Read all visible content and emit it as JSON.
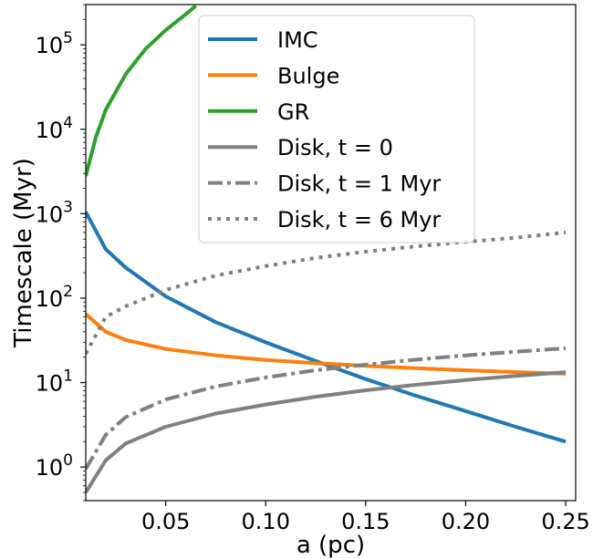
{
  "chart_data": {
    "type": "line",
    "xlabel": "a (pc)",
    "ylabel": "Timescale (Myr)",
    "xlim": [
      0.01,
      0.255
    ],
    "ylim": [
      0.4,
      300000
    ],
    "yscale": "log",
    "grid": false,
    "legend_position": "top-center",
    "x_ticks": [
      {
        "value": 0.05,
        "label": "0.05"
      },
      {
        "value": 0.1,
        "label": "0.10"
      },
      {
        "value": 0.15,
        "label": "0.15"
      },
      {
        "value": 0.2,
        "label": "0.20"
      },
      {
        "value": 0.25,
        "label": "0.25"
      }
    ],
    "y_ticks": [
      {
        "value": 1,
        "base": "10",
        "exp": "0"
      },
      {
        "value": 10,
        "base": "10",
        "exp": "1"
      },
      {
        "value": 100,
        "base": "10",
        "exp": "2"
      },
      {
        "value": 1000,
        "base": "10",
        "exp": "3"
      },
      {
        "value": 10000,
        "base": "10",
        "exp": "4"
      },
      {
        "value": 100000,
        "base": "10",
        "exp": "5"
      }
    ],
    "series": [
      {
        "name": "IMC",
        "color": "#1f77b4",
        "style": "solid",
        "x": [
          0.01,
          0.02,
          0.03,
          0.05,
          0.075,
          0.1,
          0.125,
          0.15,
          0.175,
          0.2,
          0.225,
          0.25
        ],
        "y": [
          1050,
          380,
          230,
          105,
          52,
          30,
          18,
          11,
          7,
          4.6,
          3.0,
          2.0
        ]
      },
      {
        "name": "Bulge",
        "color": "#ff7f0e",
        "style": "solid",
        "x": [
          0.01,
          0.02,
          0.03,
          0.05,
          0.075,
          0.1,
          0.125,
          0.15,
          0.175,
          0.2,
          0.225,
          0.25
        ],
        "y": [
          65,
          40,
          32,
          25,
          21,
          18.5,
          17,
          15.8,
          14.8,
          14,
          13.3,
          12.7
        ]
      },
      {
        "name": "GR",
        "color": "#2ca02c",
        "style": "solid",
        "x": [
          0.01,
          0.015,
          0.02,
          0.03,
          0.04,
          0.05,
          0.06,
          0.065
        ],
        "y": [
          2800,
          8000,
          17000,
          45000,
          90000,
          150000,
          230000,
          290000
        ]
      },
      {
        "name": "Disk, t = 0",
        "color": "#808080",
        "style": "solid",
        "x": [
          0.01,
          0.02,
          0.03,
          0.05,
          0.075,
          0.1,
          0.125,
          0.15,
          0.175,
          0.2,
          0.225,
          0.25
        ],
        "y": [
          0.5,
          1.2,
          1.9,
          3.0,
          4.3,
          5.5,
          6.8,
          8.1,
          9.4,
          10.7,
          12.0,
          13.3
        ]
      },
      {
        "name": "Disk, t = 1 Myr",
        "color": "#808080",
        "style": "dashdot",
        "x": [
          0.01,
          0.02,
          0.03,
          0.05,
          0.075,
          0.1,
          0.125,
          0.15,
          0.175,
          0.2,
          0.225,
          0.25
        ],
        "y": [
          0.95,
          2.4,
          3.9,
          6.3,
          9.0,
          11.5,
          14.0,
          16.3,
          18.7,
          21.0,
          23.2,
          25.5
        ]
      },
      {
        "name": "Disk, t = 6 Myr",
        "color": "#808080",
        "style": "dotted",
        "x": [
          0.01,
          0.02,
          0.03,
          0.05,
          0.075,
          0.1,
          0.125,
          0.15,
          0.175,
          0.2,
          0.225,
          0.25
        ],
        "y": [
          22,
          60,
          80,
          125,
          185,
          240,
          300,
          355,
          410,
          465,
          520,
          600
        ]
      }
    ]
  }
}
